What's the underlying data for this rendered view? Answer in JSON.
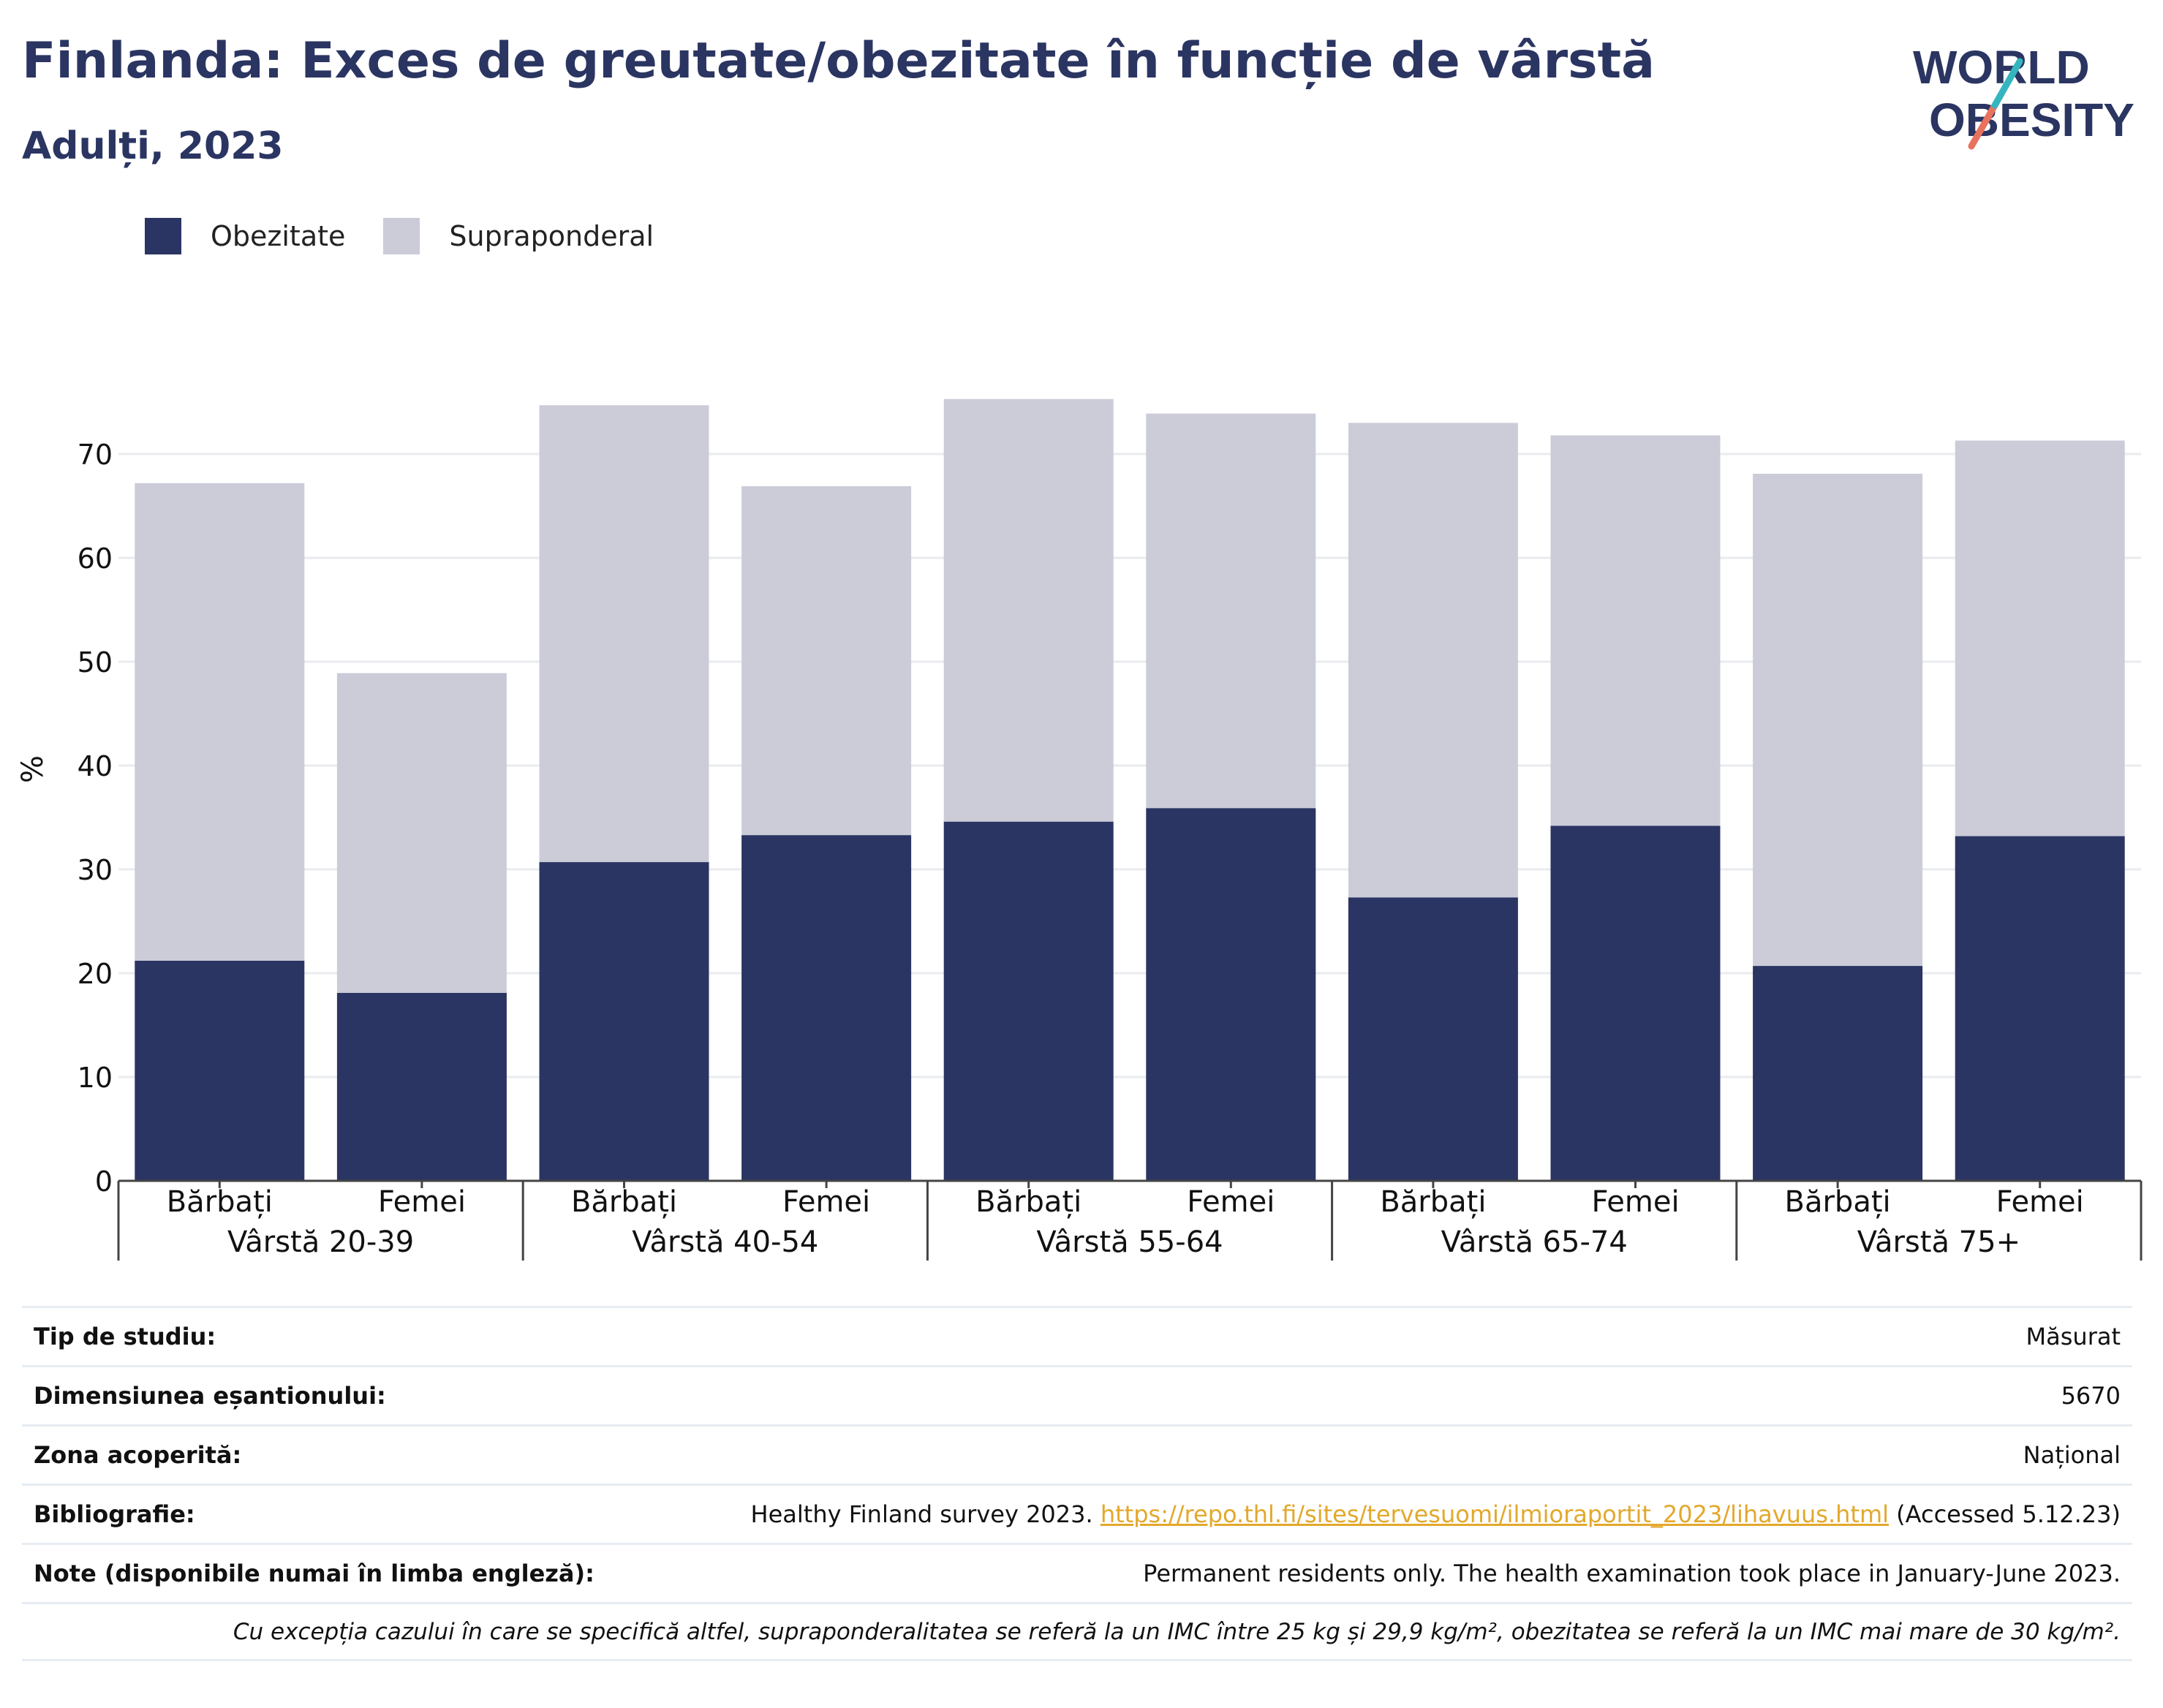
{
  "header": {
    "title": "Finlanda: Exces de greutate/obezitate în funcție de vârstă",
    "subtitle": "Adulți, 2023",
    "logo_line1": "WORLD",
    "logo_line2": "OBESITY"
  },
  "colors": {
    "obesity": "#2a3563",
    "overweight": "#cbccd8",
    "title": "#2b3562",
    "link": "#e3a82b"
  },
  "legend": [
    {
      "label": "Obezitate",
      "color": "#2a3563"
    },
    {
      "label": "Supraponderal",
      "color": "#cbccd8"
    }
  ],
  "chart_data": {
    "type": "bar",
    "stacked": true,
    "ylabel": "%",
    "ylim": [
      0,
      80
    ],
    "yticks": [
      0,
      10,
      20,
      30,
      40,
      50,
      60,
      70
    ],
    "grid": true,
    "legend_position": "top-left",
    "groups": [
      "Vârstă 20-39",
      "Vârstă 40-54",
      "Vârstă 55-64",
      "Vârstă 65-74",
      "Vârstă 75+"
    ],
    "categories": [
      "Bărbați",
      "Femei",
      "Bărbați",
      "Femei",
      "Bărbați",
      "Femei",
      "Bărbați",
      "Femei",
      "Bărbați",
      "Femei"
    ],
    "series": [
      {
        "name": "Obezitate",
        "values": [
          21.2,
          18.1,
          30.7,
          33.3,
          34.6,
          35.9,
          27.3,
          34.2,
          20.7,
          33.2
        ]
      },
      {
        "name": "Supraponderal",
        "values": [
          46.0,
          30.8,
          44.0,
          33.6,
          40.7,
          38.0,
          45.7,
          37.6,
          47.4,
          38.1
        ]
      }
    ]
  },
  "info": [
    {
      "label": "Tip de studiu:",
      "value": "Măsurat"
    },
    {
      "label": "Dimensiunea eșantionului:",
      "value": "5670"
    },
    {
      "label": "Zona acoperită:",
      "value": "Național"
    },
    {
      "label": "Bibliografie:",
      "value": "Healthy Finland survey 2023.",
      "link": "https://repo.thl.fi/sites/tervesuomi/ilmioraportit_2023/lihavuus.html",
      "suffix": " (Accessed 5.12.23)"
    },
    {
      "label": "Note (disponibile numai în limba engleză):",
      "value": "Permanent residents only. The health examination took place in January-June 2023."
    }
  ],
  "footnote": "Cu excepția cazului în care se specifică altfel, supraponderalitatea se referă la un IMC între 25 kg și 29,9 kg/m², obezitatea se referă la un IMC mai mare de 30 kg/m²."
}
